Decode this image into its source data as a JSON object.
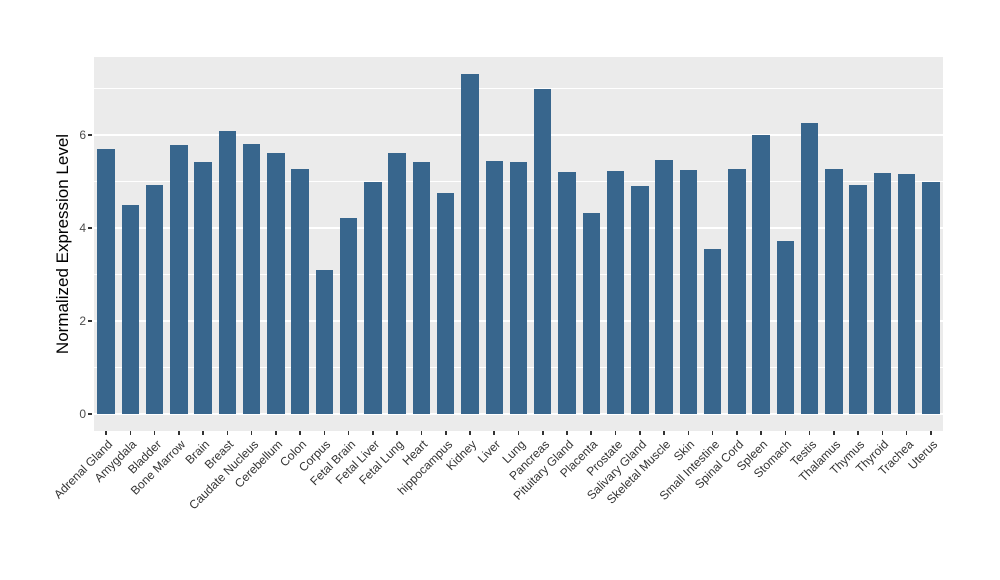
{
  "chart_data": {
    "type": "bar",
    "title": "",
    "xlabel": "",
    "ylabel": "Normalized Expression Level",
    "legend_position": "none",
    "grid": "on",
    "panel_bg": "#EBEBEB",
    "grid_color": "#FFFFFF",
    "bar_color": "#38668D",
    "axis_text_color": "#4D4D4D",
    "ylim": [
      -0.37,
      7.68
    ],
    "yticks": [
      0,
      2,
      4,
      6
    ],
    "ytick_labels": [
      "0",
      "2",
      "4",
      "6"
    ],
    "minor_gridlines": [
      1,
      3,
      5,
      7
    ],
    "x_label_angle": 45,
    "categories": [
      "Adrenal Gland",
      "Amygdala",
      "Bladder",
      "Bone Marrow",
      "Brain",
      "Breast",
      "Caudate Nucleus",
      "Cerebellum",
      "Colon",
      "Corpus",
      "Fetal Brain",
      "Fetal Liver",
      "Fetal Lung",
      "Heart",
      "hippocampus",
      "Kidney",
      "Liver",
      "Lung",
      "Pancreas",
      "Pituitary Gland",
      "Placenta",
      "Prostate",
      "Salivary Gland",
      "Skeletal Muscle",
      "Skin",
      "Small Intestine",
      "Spinal Cord",
      "Spleen",
      "Stomach",
      "Testis",
      "Thalamus",
      "Thymus",
      "Thyroid",
      "Trachea",
      "Uterus"
    ],
    "values": [
      5.7,
      4.5,
      4.93,
      5.78,
      5.42,
      6.09,
      5.8,
      5.61,
      5.27,
      3.1,
      4.22,
      4.98,
      5.61,
      5.42,
      4.76,
      7.31,
      5.44,
      5.43,
      7.0,
      5.2,
      4.32,
      5.23,
      4.9,
      5.46,
      5.25,
      3.55,
      5.26,
      6.0,
      3.73,
      6.27,
      5.28,
      4.93,
      5.19,
      5.16,
      5.0
    ]
  }
}
